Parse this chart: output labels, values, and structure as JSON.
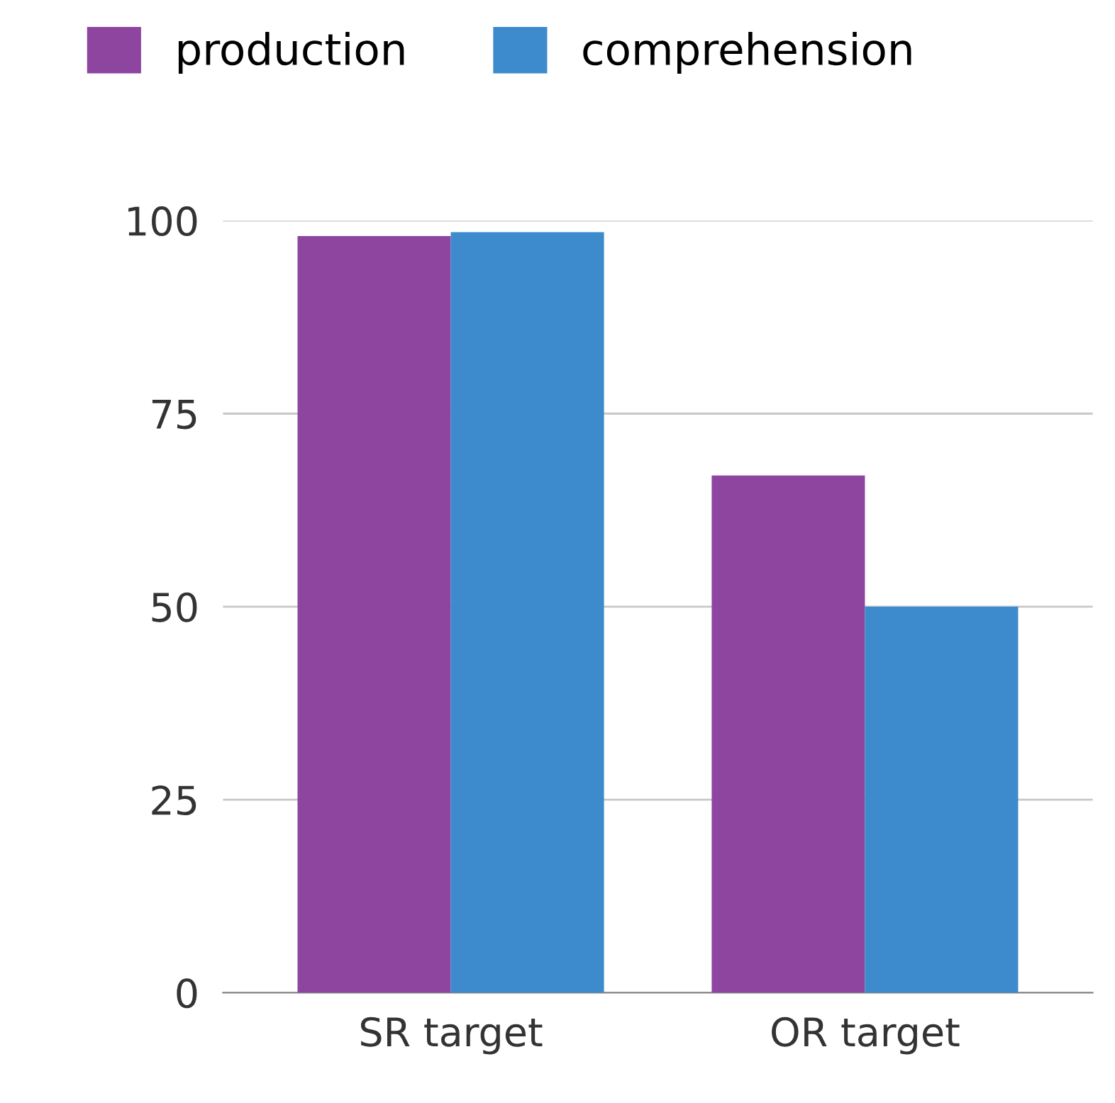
{
  "chart_data": {
    "type": "bar",
    "categories": [
      "SR target",
      "OR target"
    ],
    "series": [
      {
        "name": "production",
        "color": "#8d45a0",
        "values": [
          98,
          67
        ]
      },
      {
        "name": "comprehension",
        "color": "#3d8bcc",
        "values": [
          98.5,
          50
        ]
      }
    ],
    "ylim": [
      0,
      100
    ],
    "yticks": [
      0,
      25,
      50,
      75,
      100
    ],
    "grid": "y",
    "legend": "top left"
  }
}
